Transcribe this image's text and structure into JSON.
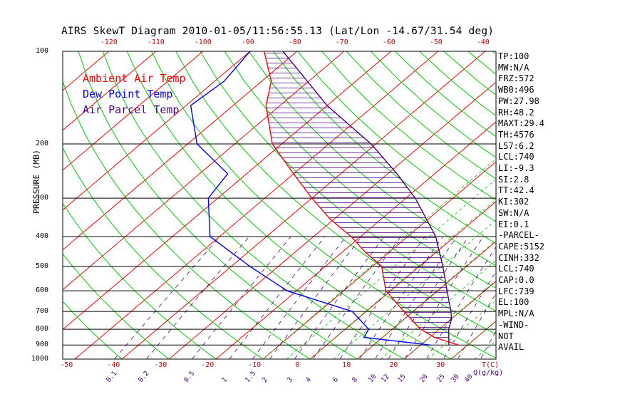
{
  "title": "AIRS SkewT Diagram 2010-01-05/11:56:55.13 (Lat/Lon -14.67/31.54 deg)",
  "legend": [
    {
      "label": "Ambient Air Temp",
      "color": "#ff0000"
    },
    {
      "label": "Dew Point Temp",
      "color": "#0000ff"
    },
    {
      "label": "Air Parcel Temp",
      "color": "#4b0082"
    }
  ],
  "colors": {
    "isotherm": "#ff0000",
    "dry_adiabat": "#00cc00",
    "moist_adiabat": "#00cc00",
    "mixing_ratio": "#4b0082",
    "ambient": "#ff0000",
    "dewpoint": "#0000ff",
    "parcel": "#4b0082",
    "isobar": "#000000"
  },
  "indices": [
    "TP:100",
    "MW:N/A",
    "FRZ:572",
    "WB0:496",
    "PW:27.98",
    "RH:48.2",
    "MAXT:29.4",
    "TH:4576",
    "L57:6.2",
    "LCL:740",
    "LI:-9.3",
    "SI:2.8",
    "TT:42.4",
    "KI:302",
    "SW:N/A",
    "EI:0.1",
    "-PARCEL-",
    "CAPE:5152",
    "CINH:332",
    "LCL:740",
    "CAP:0.0",
    "LFC:739",
    "EL:100",
    "MPL:N/A",
    "-WIND-",
    "NOT",
    "AVAIL"
  ],
  "chart_data": {
    "type": "line",
    "title": "AIRS SkewT Diagram 2010-01-05/11:56:55.13 (Lat/Lon -14.67/31.54 deg)",
    "ylabel": "PRESSURE (MB)",
    "xlabel": "T(C)",
    "y_scale": "log",
    "pressure_ticks": [
      100,
      200,
      300,
      400,
      500,
      600,
      700,
      800,
      900,
      1000
    ],
    "isobars": [
      100,
      200,
      300,
      400,
      500,
      600,
      700,
      800,
      900,
      1000
    ],
    "temp_ticks_top": [
      -120,
      -110,
      -100,
      -90,
      -80,
      -70,
      -60,
      -50,
      -40
    ],
    "temp_ticks_bottom": [
      -50,
      -40,
      -30,
      -20,
      -10,
      0,
      10,
      20,
      30
    ],
    "mixing_ratio_labels": [
      "0.1",
      "0.2",
      "0.5",
      "1",
      "1.5",
      "2",
      "3",
      "4",
      "6",
      "8",
      "10",
      "12",
      "15",
      "20",
      "25",
      "30",
      "40"
    ],
    "mixing_ratio_unit": "Q(g/kg)",
    "series": [
      {
        "name": "Ambient Air Temp",
        "points": [
          [
            100,
            -87
          ],
          [
            125,
            -78
          ],
          [
            150,
            -73
          ],
          [
            200,
            -62
          ],
          [
            250,
            -50
          ],
          [
            300,
            -40
          ],
          [
            350,
            -31
          ],
          [
            400,
            -22
          ],
          [
            450,
            -15
          ],
          [
            500,
            -8
          ],
          [
            600,
            -1
          ],
          [
            700,
            8
          ],
          [
            800,
            16
          ],
          [
            850,
            21
          ],
          [
            900,
            28
          ]
        ]
      },
      {
        "name": "Dew Point Temp",
        "points": [
          [
            100,
            -90
          ],
          [
            125,
            -88
          ],
          [
            150,
            -89
          ],
          [
            200,
            -78
          ],
          [
            250,
            -64
          ],
          [
            300,
            -62
          ],
          [
            400,
            -52
          ],
          [
            500,
            -36
          ],
          [
            600,
            -22
          ],
          [
            700,
            -3
          ],
          [
            800,
            5
          ],
          [
            850,
            6
          ],
          [
            900,
            22
          ]
        ]
      },
      {
        "name": "Air Parcel Temp",
        "points": [
          [
            100,
            -83
          ],
          [
            150,
            -60
          ],
          [
            200,
            -41
          ],
          [
            250,
            -28
          ],
          [
            300,
            -18
          ],
          [
            400,
            -4
          ],
          [
            500,
            5
          ],
          [
            600,
            12
          ],
          [
            700,
            18
          ],
          [
            740,
            20
          ],
          [
            800,
            22
          ],
          [
            900,
            26
          ]
        ]
      }
    ]
  }
}
